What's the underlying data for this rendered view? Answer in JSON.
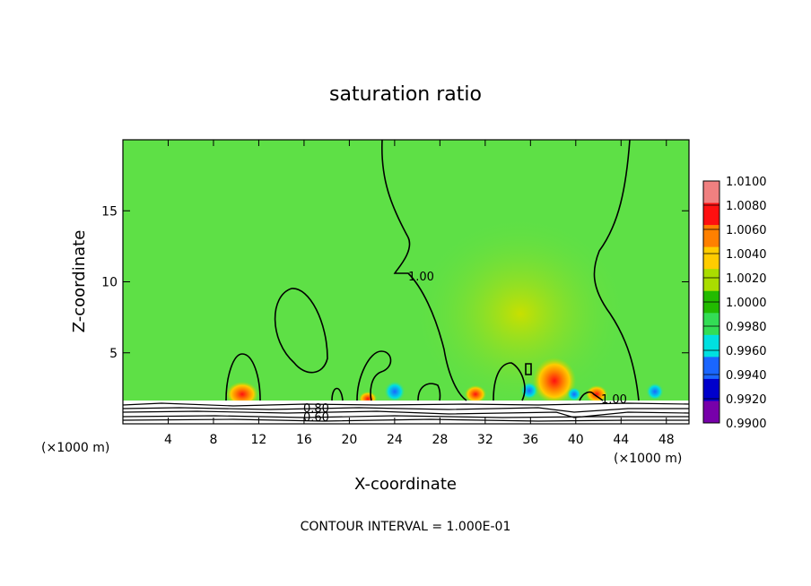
{
  "chart_data": {
    "type": "heatmap",
    "title": "saturation ratio",
    "xlabel": "X-coordinate",
    "ylabel": "Z-coordinate",
    "x_unit": "(×1000 m)",
    "xlim": [
      0,
      50
    ],
    "ylim": [
      0,
      20
    ],
    "x_ticks": [
      4,
      8,
      12,
      16,
      20,
      24,
      28,
      32,
      36,
      40,
      44,
      48
    ],
    "y_ticks": [
      5,
      10,
      15
    ],
    "colorbar": {
      "levels": [
        "1.0100",
        "1.0080",
        "1.0060",
        "1.0040",
        "1.0020",
        "1.0000",
        "0.9980",
        "0.9960",
        "0.9940",
        "0.9920",
        "0.9900"
      ],
      "colors": [
        "#f08080",
        "#ff1010",
        "#ff8000",
        "#ffcc00",
        "#aadd00",
        "#22bb00",
        "#33dd55",
        "#00e0e0",
        "#1a66ff",
        "#0000cc",
        "#7700aa"
      ]
    },
    "contour_labels": [
      "1.00",
      "1.00",
      "0.80",
      "0.60"
    ],
    "note": "CONTOUR INTERVAL = 1.000E-01",
    "colors": {
      "background_field": "#5ee046",
      "lower_layer": "#ffffff",
      "contour": "#000000"
    }
  }
}
